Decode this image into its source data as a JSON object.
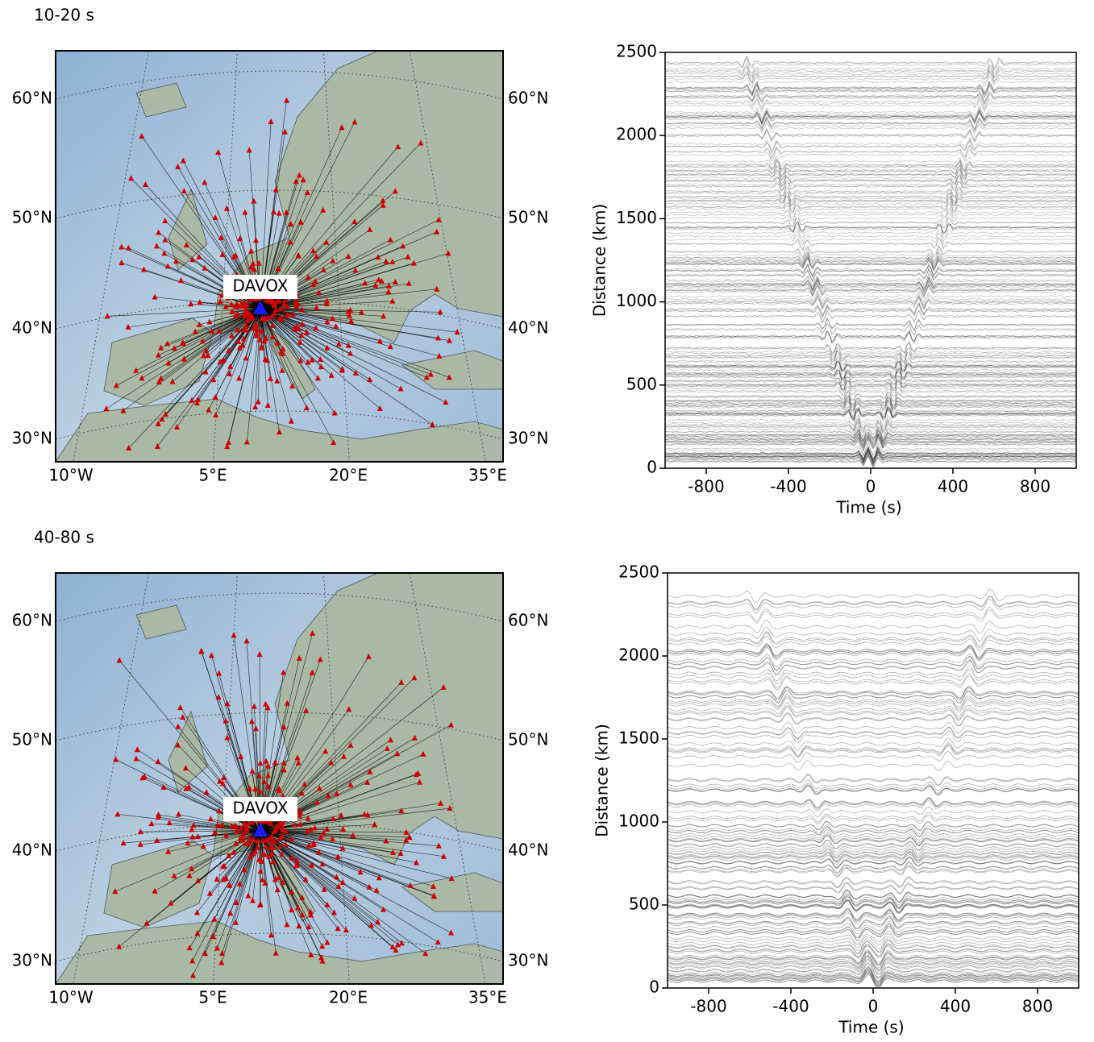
{
  "panels": [
    {
      "title": "10-20 s",
      "map": {
        "station": "DAVOX",
        "lat_labels": [
          "60°N",
          "50°N",
          "40°N",
          "30°N"
        ],
        "lon_labels": [
          "10°W",
          "5°E",
          "20°E",
          "35°E"
        ]
      },
      "record_section": {
        "type": "record_section",
        "xlabel": "Time (s)",
        "ylabel": "Distance (km)",
        "xlim": [
          -1000,
          1000
        ],
        "ylim": [
          0,
          2500
        ],
        "xticks": [
          -800,
          -400,
          0,
          400,
          800
        ],
        "yticks": [
          0,
          500,
          1000,
          1500,
          2000,
          2500
        ]
      }
    },
    {
      "title": "40-80 s",
      "map": {
        "station": "DAVOX",
        "lat_labels": [
          "60°N",
          "50°N",
          "40°N",
          "30°N"
        ],
        "lon_labels": [
          "10°W",
          "5°E",
          "20°E",
          "35°E"
        ]
      },
      "record_section": {
        "type": "record_section",
        "xlabel": "Time (s)",
        "ylabel": "Distance (km)",
        "xlim": [
          -1000,
          1000
        ],
        "ylim": [
          0,
          2500
        ],
        "xticks": [
          -800,
          -400,
          0,
          400,
          800
        ],
        "yticks": [
          0,
          500,
          1000,
          1500,
          2000,
          2500
        ]
      }
    }
  ]
}
